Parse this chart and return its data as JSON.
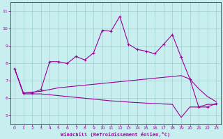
{
  "xlabel": "Windchill (Refroidissement éolien,°C)",
  "xlim": [
    -0.5,
    23.5
  ],
  "ylim": [
    4.5,
    11.5
  ],
  "yticks": [
    5,
    6,
    7,
    8,
    9,
    10,
    11
  ],
  "xticks": [
    0,
    1,
    2,
    3,
    4,
    5,
    6,
    7,
    8,
    9,
    10,
    11,
    12,
    13,
    14,
    15,
    16,
    17,
    18,
    19,
    20,
    21,
    22,
    23
  ],
  "bg_color": "#c8eef0",
  "grid_color": "#9ecfcc",
  "line_color": "#990099",
  "line1_x": [
    0,
    1,
    2,
    3,
    4,
    5,
    6,
    7,
    8,
    9,
    10,
    11,
    12,
    13,
    14,
    15,
    16,
    17,
    18,
    19,
    20,
    21,
    22,
    23
  ],
  "line1_y": [
    7.7,
    6.3,
    6.3,
    6.5,
    8.1,
    8.1,
    8.0,
    8.4,
    8.2,
    8.6,
    9.9,
    9.85,
    10.7,
    9.1,
    8.8,
    8.7,
    8.55,
    9.1,
    9.65,
    8.35,
    7.1,
    5.5,
    5.5,
    5.7
  ],
  "line2_x": [
    0,
    1,
    2,
    3,
    4,
    5,
    6,
    7,
    8,
    9,
    10,
    11,
    12,
    13,
    14,
    15,
    16,
    17,
    18,
    19,
    20,
    21,
    22,
    23
  ],
  "line2_y": [
    7.7,
    6.3,
    6.35,
    6.4,
    6.5,
    6.6,
    6.65,
    6.7,
    6.75,
    6.8,
    6.85,
    6.9,
    6.95,
    7.0,
    7.05,
    7.1,
    7.15,
    7.2,
    7.25,
    7.3,
    7.1,
    6.55,
    6.1,
    5.8
  ],
  "line3_x": [
    0,
    1,
    2,
    3,
    4,
    5,
    6,
    7,
    8,
    9,
    10,
    11,
    12,
    13,
    14,
    15,
    16,
    17,
    18,
    19,
    20,
    21,
    22,
    23
  ],
  "line3_y": [
    7.7,
    6.25,
    6.25,
    6.25,
    6.2,
    6.15,
    6.1,
    6.05,
    6.0,
    5.95,
    5.9,
    5.85,
    5.82,
    5.78,
    5.75,
    5.72,
    5.7,
    5.67,
    5.65,
    4.9,
    5.5,
    5.5,
    5.65,
    5.65
  ]
}
